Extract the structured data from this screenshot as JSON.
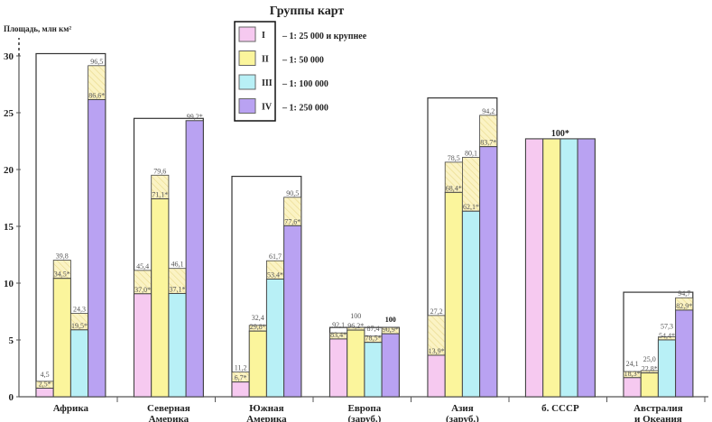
{
  "chart_data": {
    "type": "bar",
    "title": "Группы карт",
    "ylabel": "Площадь, млн км²",
    "ylim": [
      0,
      30
    ],
    "yticks": [
      0,
      5,
      10,
      15,
      20,
      25,
      30
    ],
    "grid": false,
    "legend_placement": "top-center",
    "colors": {
      "I": "#f6c9f0",
      "II": "#fbf59c",
      "III": "#b8f0f6",
      "IV": "#b9a2f2",
      "hatch": "#fbf3c4",
      "hatch_line": "#e8d98a"
    },
    "legend": [
      {
        "code": "I",
        "text": "– 1: 25 000 и крупнее"
      },
      {
        "code": "II",
        "text": "– 1: 50 000"
      },
      {
        "code": "III",
        "text": "– 1: 100 000"
      },
      {
        "code": "IV",
        "text": "– 1: 250 000"
      }
    ],
    "categories": [
      {
        "name": [
          "Африка"
        ],
        "area": 30.2,
        "bars": [
          {
            "covered_pct": 2.5,
            "total_pct": 4.5,
            "covered_label": "2,5*",
            "total_label": "4,5"
          },
          {
            "covered_pct": 34.5,
            "total_pct": 39.8,
            "covered_label": "34,5*",
            "total_label": "39,8"
          },
          {
            "covered_pct": 19.5,
            "total_pct": 24.3,
            "covered_label": "19,5*",
            "total_label": "24,3"
          },
          {
            "covered_pct": 86.6,
            "total_pct": 96.5,
            "covered_label": "86,6*",
            "total_label": "96,5"
          }
        ]
      },
      {
        "name": [
          "Северная",
          "Америка"
        ],
        "area": 24.5,
        "bars": [
          {
            "covered_pct": 37.0,
            "total_pct": 45.4,
            "covered_label": "37,0*",
            "total_label": "45,4"
          },
          {
            "covered_pct": 71.1,
            "total_pct": 79.6,
            "covered_label": "71,1*",
            "total_label": "79,6"
          },
          {
            "covered_pct": 37.1,
            "total_pct": 46.1,
            "covered_label": "37,1*",
            "total_label": "46,1"
          },
          {
            "covered_pct": 99.2,
            "total_pct": 99.2,
            "covered_label": "99,2*",
            "total_label": ""
          }
        ]
      },
      {
        "name": [
          "Южная",
          "Америка"
        ],
        "area": 19.4,
        "bars": [
          {
            "covered_pct": 6.7,
            "total_pct": 11.2,
            "covered_label": "6,7*",
            "total_label": "11,2"
          },
          {
            "covered_pct": 29.8,
            "total_pct": 32.4,
            "covered_label": "29,8*",
            "total_label": "32,4"
          },
          {
            "covered_pct": 53.4,
            "total_pct": 61.7,
            "covered_label": "53,4*",
            "total_label": "61,7"
          },
          {
            "covered_pct": 77.6,
            "total_pct": 90.5,
            "covered_label": "77,6*",
            "total_label": "90,5"
          }
        ]
      },
      {
        "name": [
          "Европа",
          "(заруб.)"
        ],
        "area": 6.1,
        "bars": [
          {
            "covered_pct": 83.4,
            "total_pct": 92.1,
            "covered_label": "83,4*",
            "total_label": "92,1"
          },
          {
            "covered_pct": 96.2,
            "total_pct": 100,
            "covered_label": "96,2*",
            "total_label": "100"
          },
          {
            "covered_pct": 78.5,
            "total_pct": 87.4,
            "covered_label": "78,5*",
            "total_label": "87,4"
          },
          {
            "covered_pct": 90.9,
            "total_pct": 100,
            "covered_label": "90,9*",
            "total_label": "100",
            "bold": true
          }
        ]
      },
      {
        "name": [
          "Азия",
          "(заруб.)"
        ],
        "area": 26.3,
        "bars": [
          {
            "covered_pct": 13.9,
            "total_pct": 27.2,
            "covered_label": "13,9*",
            "total_label": "27,2"
          },
          {
            "covered_pct": 68.4,
            "total_pct": 78.5,
            "covered_label": "68,4*",
            "total_label": "78,5"
          },
          {
            "covered_pct": 62.1,
            "total_pct": 80.1,
            "covered_label": "62,1*",
            "total_label": "80,1"
          },
          {
            "covered_pct": 83.7,
            "total_pct": 94.2,
            "covered_label": "83,7*",
            "total_label": "94,2"
          }
        ]
      },
      {
        "name": [
          "б. СССР"
        ],
        "area": 22.7,
        "single_label": "100*",
        "bars": [
          {
            "covered_pct": 100,
            "total_pct": 100,
            "covered_label": "",
            "total_label": ""
          },
          {
            "covered_pct": 100,
            "total_pct": 100,
            "covered_label": "",
            "total_label": ""
          },
          {
            "covered_pct": 100,
            "total_pct": 100,
            "covered_label": "",
            "total_label": ""
          },
          {
            "covered_pct": 100,
            "total_pct": 100,
            "covered_label": "",
            "total_label": ""
          }
        ]
      },
      {
        "name": [
          "Австралия",
          "и Океания"
        ],
        "area": 9.2,
        "bars": [
          {
            "covered_pct": 18.3,
            "total_pct": 24.1,
            "covered_label": "18,3*",
            "total_label": "24,1"
          },
          {
            "covered_pct": 22.8,
            "total_pct": 25.0,
            "covered_label": "22,8*",
            "total_label": "25,0"
          },
          {
            "covered_pct": 54.4,
            "total_pct": 57.3,
            "covered_label": "54,4*",
            "total_label": "57,3"
          },
          {
            "covered_pct": 82.9,
            "total_pct": 94.7,
            "covered_label": "82,9*",
            "total_label": "94,7"
          }
        ]
      }
    ]
  }
}
